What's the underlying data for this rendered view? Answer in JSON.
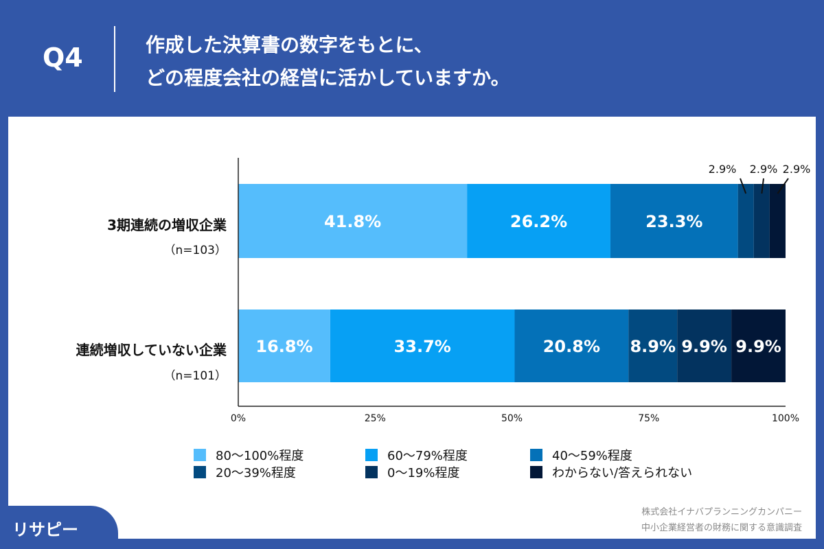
{
  "header": {
    "q_label": "Q4",
    "title_line1": "作成した決算書の数字をもとに、",
    "title_line2": "どの程度会社の経営に活かしていますか。"
  },
  "chart_data": {
    "type": "bar",
    "orientation": "horizontal-stacked-100",
    "categories": [
      {
        "label": "3期連続の増収企業",
        "n": "（n=103）"
      },
      {
        "label": "連続増収していない企業",
        "n": "（n=101）"
      }
    ],
    "series": [
      {
        "name": "80〜100%程度",
        "color": "#55bdfc",
        "values": [
          41.8,
          16.8
        ]
      },
      {
        "name": "60〜79%程度",
        "color": "#07a0f4",
        "values": [
          26.2,
          33.7
        ]
      },
      {
        "name": "40〜59%程度",
        "color": "#0471b8",
        "values": [
          23.3,
          20.8
        ]
      },
      {
        "name": "20〜39%程度",
        "color": "#024a80",
        "values": [
          2.9,
          8.9
        ]
      },
      {
        "name": "0〜19%程度",
        "color": "#03335f",
        "values": [
          2.9,
          9.9
        ]
      },
      {
        "name": "わからない/答えられない",
        "color": "#021737",
        "values": [
          2.9,
          9.9
        ]
      }
    ],
    "data_labels": [
      [
        "41.8%",
        "26.2%",
        "23.3%",
        "2.9%",
        "2.9%",
        "2.9%"
      ],
      [
        "16.8%",
        "33.7%",
        "20.8%",
        "8.9%",
        "9.9%",
        "9.9%"
      ]
    ],
    "xticks": [
      "0%",
      "25%",
      "50%",
      "75%",
      "100%"
    ],
    "xlim": [
      0,
      100
    ],
    "legend": "bottom"
  },
  "footer": {
    "logo": "リサピー",
    "source_line1": "株式会社イナバプランニングカンパニー",
    "source_line2": "中小企業経営者の財務に関する意識調査"
  }
}
